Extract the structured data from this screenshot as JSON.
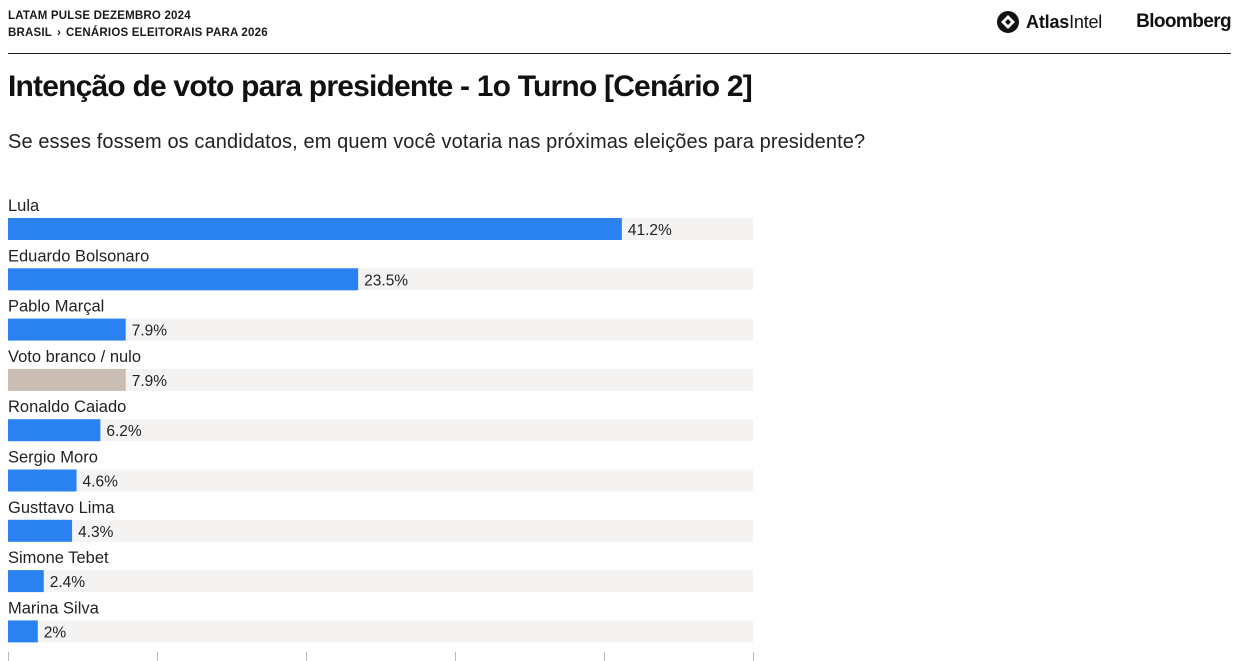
{
  "header": {
    "kicker_line1": "LATAM PULSE DEZEMBRO 2024",
    "crumb_1": "BRASIL",
    "crumb_sep": "›",
    "crumb_2": "CENÁRIOS ELEITORAIS PARA 2026",
    "logo_atlas_bold": "Atlas",
    "logo_atlas_light": "Intel",
    "logo_bloomberg": "Bloomberg"
  },
  "title": "Intenção de voto para presidente - 1o Turno [Cenário 2]",
  "subtitle": "Se esses fossem os candidatos, em quem você votaria nas próximas eleições para presidente?",
  "colors": {
    "candidate_bar": "#2a82f0",
    "blank_bar": "#c9bdb4",
    "track": "#f4f3f1"
  },
  "chart_data": {
    "type": "bar",
    "orientation": "horizontal",
    "xlim": [
      0,
      50
    ],
    "grid": false,
    "categories": [
      "Lula",
      "Eduardo Bolsonaro",
      "Pablo Marçal",
      "Voto branco / nulo",
      "Ronaldo Caiado",
      "Sergio Moro",
      "Gusttavo Lima",
      "Simone Tebet",
      "Marina Silva"
    ],
    "values": [
      41.2,
      23.5,
      7.9,
      7.9,
      6.2,
      4.6,
      4.3,
      2.4,
      2
    ],
    "value_labels": [
      "41.2%",
      "23.5%",
      "7.9%",
      "7.9%",
      "6.2%",
      "4.6%",
      "4.3%",
      "2.4%",
      "2%"
    ],
    "bar_kinds": [
      "candidate",
      "candidate",
      "candidate",
      "blank",
      "candidate",
      "candidate",
      "candidate",
      "candidate",
      "candidate"
    ]
  }
}
